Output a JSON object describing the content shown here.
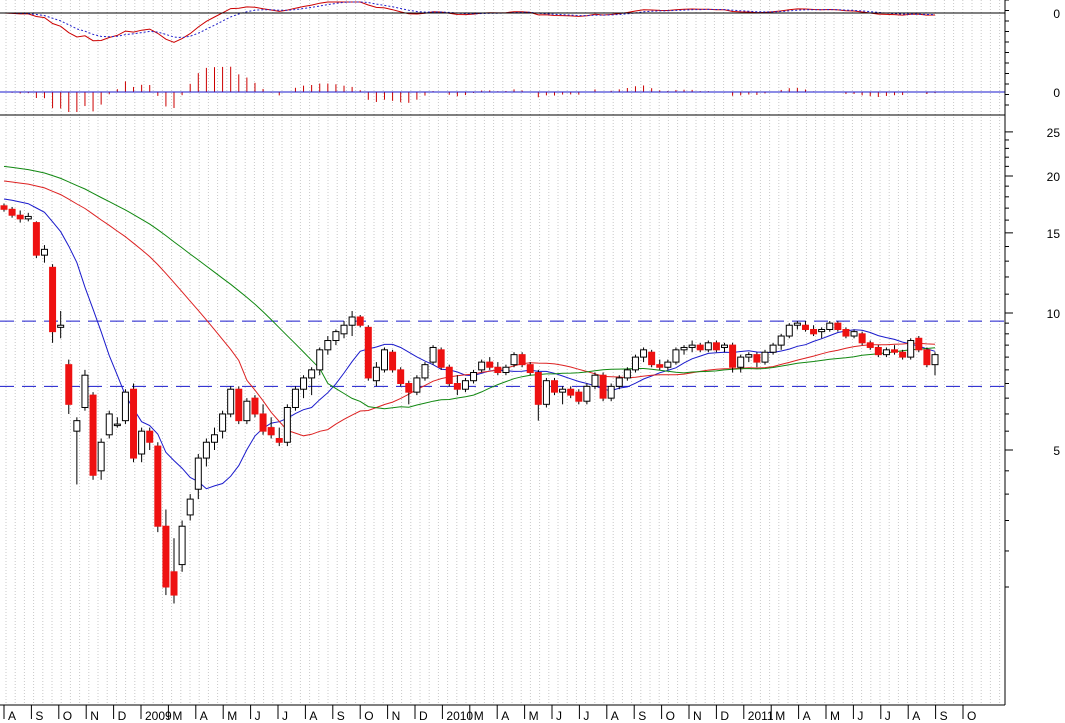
{
  "chart_data": {
    "type": "candlestick",
    "scale": "log",
    "grid": true,
    "colors": {
      "up_candle": "#ffffff",
      "down_candle": "#ee1111",
      "ma_fast": "#1a1acc",
      "ma_mid": "#dd2222",
      "ma_slow": "#118811",
      "reference_lines": "#1a1acc",
      "osc_line": "#cc0000",
      "osc_signal": "#2222cc",
      "histogram": "#cc0000"
    },
    "price_axis": {
      "ylim": [
        2.1,
        25
      ],
      "ticks": [
        {
          "value": 25,
          "label": "25"
        },
        {
          "value": 20,
          "label": "20"
        },
        {
          "value": 15,
          "label": "15"
        },
        {
          "value": 10,
          "label": "10"
        },
        {
          "value": 5,
          "label": "5"
        }
      ]
    },
    "reference_lines": [
      9.6,
      6.9
    ],
    "oscillator_panel": {
      "zero_label": "0"
    },
    "histogram_panel": {
      "zero_label": "0"
    },
    "x_axis": {
      "months": [
        "A",
        "S",
        "O",
        "N",
        "D",
        "2009",
        "M",
        "A",
        "M",
        "J",
        "J",
        "A",
        "S",
        "O",
        "N",
        "D",
        "2010",
        "M",
        "A",
        "M",
        "J",
        "J",
        "A",
        "S",
        "O",
        "N",
        "D",
        "2011",
        "M",
        "A",
        "M",
        "J",
        "J",
        "A",
        "S",
        "O"
      ]
    },
    "candles": [
      [
        17.2,
        17.4,
        16.7,
        16.9
      ],
      [
        16.9,
        17.1,
        16.2,
        16.4
      ],
      [
        16.4,
        16.8,
        15.8,
        16.1
      ],
      [
        16.1,
        16.6,
        15.9,
        16.3
      ],
      [
        15.8,
        15.9,
        13.2,
        13.4
      ],
      [
        13.4,
        14.1,
        12.9,
        13.8
      ],
      [
        12.6,
        12.8,
        8.6,
        9.1
      ],
      [
        9.3,
        10.1,
        8.8,
        9.4
      ],
      [
        7.7,
        7.9,
        6.0,
        6.3
      ],
      [
        5.5,
        5.9,
        4.2,
        5.8
      ],
      [
        6.2,
        7.5,
        6.1,
        7.3
      ],
      [
        6.6,
        6.7,
        4.3,
        4.4
      ],
      [
        4.5,
        5.3,
        4.3,
        5.2
      ],
      [
        5.4,
        6.1,
        5.3,
        6.0
      ],
      [
        5.7,
        5.9,
        5.6,
        5.7
      ],
      [
        5.8,
        6.8,
        5.7,
        6.7
      ],
      [
        6.8,
        7.0,
        4.7,
        4.8
      ],
      [
        4.9,
        5.6,
        4.7,
        5.5
      ],
      [
        5.5,
        5.6,
        5.0,
        5.2
      ],
      [
        5.1,
        5.2,
        3.3,
        3.4
      ],
      [
        3.4,
        3.7,
        2.4,
        2.5
      ],
      [
        2.7,
        3.2,
        2.3,
        2.4
      ],
      [
        2.8,
        3.5,
        2.7,
        3.4
      ],
      [
        3.6,
        4.0,
        3.5,
        3.9
      ],
      [
        4.1,
        4.9,
        3.9,
        4.8
      ],
      [
        4.8,
        5.3,
        4.6,
        5.2
      ],
      [
        5.2,
        5.6,
        5.0,
        5.4
      ],
      [
        5.5,
        6.1,
        5.3,
        6.0
      ],
      [
        6.0,
        6.9,
        5.9,
        6.8
      ],
      [
        6.8,
        6.9,
        5.7,
        5.8
      ],
      [
        5.8,
        6.5,
        5.7,
        6.4
      ],
      [
        6.5,
        6.6,
        5.9,
        6.0
      ],
      [
        6.0,
        6.3,
        5.4,
        5.5
      ],
      [
        5.6,
        5.9,
        5.3,
        5.4
      ],
      [
        5.3,
        5.6,
        5.1,
        5.2
      ],
      [
        5.2,
        6.3,
        5.1,
        6.2
      ],
      [
        6.2,
        6.9,
        6.1,
        6.8
      ],
      [
        6.8,
        7.3,
        6.5,
        7.2
      ],
      [
        7.2,
        7.6,
        6.6,
        7.5
      ],
      [
        7.5,
        8.4,
        7.3,
        8.3
      ],
      [
        8.3,
        8.9,
        8.1,
        8.7
      ],
      [
        8.7,
        9.2,
        8.5,
        9.1
      ],
      [
        9.0,
        9.6,
        8.8,
        9.4
      ],
      [
        9.4,
        10.1,
        8.9,
        9.8
      ],
      [
        9.8,
        9.9,
        9.3,
        9.4
      ],
      [
        9.3,
        9.4,
        7.1,
        7.2
      ],
      [
        7.1,
        7.8,
        6.9,
        7.6
      ],
      [
        7.5,
        8.4,
        7.4,
        8.3
      ],
      [
        8.2,
        8.3,
        7.4,
        7.5
      ],
      [
        7.5,
        7.6,
        6.9,
        7.0
      ],
      [
        7.0,
        7.1,
        6.3,
        6.7
      ],
      [
        6.7,
        7.3,
        6.6,
        7.2
      ],
      [
        7.2,
        7.8,
        7.1,
        7.7
      ],
      [
        7.8,
        8.5,
        7.7,
        8.4
      ],
      [
        8.3,
        8.4,
        7.5,
        7.6
      ],
      [
        7.6,
        7.7,
        6.9,
        7.0
      ],
      [
        7.0,
        7.3,
        6.6,
        6.8
      ],
      [
        6.8,
        7.2,
        6.7,
        7.1
      ],
      [
        7.1,
        7.5,
        7.0,
        7.4
      ],
      [
        7.5,
        7.9,
        7.4,
        7.8
      ],
      [
        7.8,
        8.0,
        7.5,
        7.6
      ],
      [
        7.6,
        7.8,
        7.3,
        7.4
      ],
      [
        7.4,
        7.7,
        7.3,
        7.6
      ],
      [
        7.7,
        8.2,
        7.6,
        8.1
      ],
      [
        8.1,
        8.2,
        7.6,
        7.7
      ],
      [
        7.7,
        7.8,
        7.3,
        7.4
      ],
      [
        7.4,
        7.5,
        5.8,
        6.3
      ],
      [
        6.3,
        7.2,
        6.2,
        7.1
      ],
      [
        7.1,
        7.2,
        6.6,
        6.7
      ],
      [
        6.7,
        6.9,
        6.3,
        6.8
      ],
      [
        6.8,
        6.9,
        6.5,
        6.6
      ],
      [
        6.7,
        6.8,
        6.3,
        6.4
      ],
      [
        6.4,
        7.0,
        6.3,
        6.9
      ],
      [
        6.9,
        7.4,
        6.8,
        7.3
      ],
      [
        7.3,
        7.4,
        6.4,
        6.5
      ],
      [
        6.5,
        7.0,
        6.4,
        6.9
      ],
      [
        6.9,
        7.3,
        6.8,
        7.2
      ],
      [
        7.2,
        7.6,
        7.1,
        7.5
      ],
      [
        7.5,
        8.1,
        7.4,
        8.0
      ],
      [
        8.0,
        8.4,
        7.8,
        8.3
      ],
      [
        8.2,
        8.3,
        7.6,
        7.7
      ],
      [
        7.7,
        7.9,
        7.5,
        7.6
      ],
      [
        7.6,
        7.9,
        7.5,
        7.8
      ],
      [
        7.8,
        8.4,
        7.7,
        8.3
      ],
      [
        8.3,
        8.5,
        8.1,
        8.4
      ],
      [
        8.4,
        8.7,
        8.2,
        8.5
      ],
      [
        8.5,
        8.6,
        8.2,
        8.3
      ],
      [
        8.3,
        8.7,
        8.2,
        8.6
      ],
      [
        8.6,
        8.7,
        8.2,
        8.3
      ],
      [
        8.4,
        8.6,
        8.2,
        8.5
      ],
      [
        8.5,
        8.6,
        7.4,
        7.6
      ],
      [
        7.6,
        8.1,
        7.4,
        8.0
      ],
      [
        8.0,
        8.2,
        7.8,
        8.1
      ],
      [
        8.1,
        8.2,
        7.6,
        7.8
      ],
      [
        7.8,
        8.3,
        7.7,
        8.2
      ],
      [
        8.2,
        8.6,
        8.1,
        8.5
      ],
      [
        8.5,
        9.0,
        8.3,
        8.9
      ],
      [
        8.9,
        9.5,
        8.8,
        9.4
      ],
      [
        9.4,
        9.6,
        9.2,
        9.5
      ],
      [
        9.4,
        9.6,
        9.1,
        9.2
      ],
      [
        9.2,
        9.4,
        8.9,
        9.0
      ],
      [
        9.1,
        9.3,
        8.8,
        9.2
      ],
      [
        9.2,
        9.6,
        9.1,
        9.5
      ],
      [
        9.5,
        9.6,
        9.1,
        9.2
      ],
      [
        9.2,
        9.3,
        8.8,
        8.9
      ],
      [
        8.9,
        9.2,
        8.8,
        9.1
      ],
      [
        9.0,
        9.1,
        8.5,
        8.6
      ],
      [
        8.6,
        8.7,
        8.3,
        8.4
      ],
      [
        8.4,
        8.5,
        8.0,
        8.1
      ],
      [
        8.1,
        8.4,
        8.0,
        8.3
      ],
      [
        8.3,
        8.5,
        8.1,
        8.2
      ],
      [
        8.2,
        8.3,
        7.9,
        8.0
      ],
      [
        8.0,
        8.8,
        7.9,
        8.7
      ],
      [
        8.8,
        8.9,
        8.2,
        8.3
      ],
      [
        8.3,
        8.4,
        7.6,
        7.7
      ],
      [
        7.7,
        8.2,
        7.3,
        8.1
      ]
    ]
  }
}
